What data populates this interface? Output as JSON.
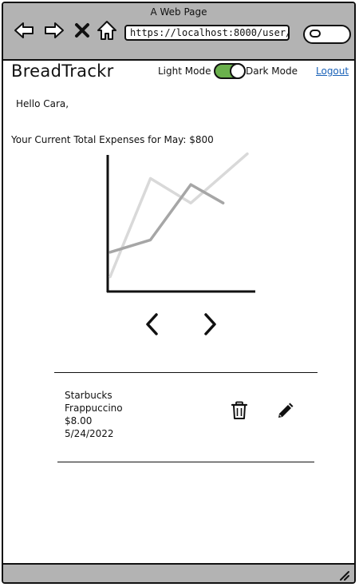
{
  "browser": {
    "window_title": "A Web Page",
    "url": "https://localhost:8000/user/:id"
  },
  "header": {
    "brand": "BreadTrackr",
    "light_mode_label": "Light Mode",
    "dark_mode_label": "Dark Mode",
    "logout_label": "Logout",
    "toggle_state": "dark",
    "toggle_color": "#6ab04c"
  },
  "main": {
    "greeting": "Hello Cara,",
    "expenses_summary": "Your Current Total Expenses for May: $800"
  },
  "chart_data": {
    "type": "line",
    "title": "",
    "xlabel": "",
    "ylabel": "",
    "x": [
      0,
      1,
      2,
      3,
      4
    ],
    "series": [
      {
        "values": [
          1,
          9,
          7,
          11
        ],
        "x": [
          0,
          1,
          2,
          3.4
        ],
        "color": "#d9d9d9"
      },
      {
        "values": [
          3,
          4,
          8.5,
          7
        ],
        "x": [
          0,
          1,
          2,
          2.8
        ],
        "color": "#a6a6a6"
      }
    ],
    "xlim": [
      0,
      3.4
    ],
    "ylim": [
      0,
      10
    ],
    "grid": false
  },
  "pager": {
    "prev_icon": "chevron-left-icon",
    "next_icon": "chevron-right-icon"
  },
  "expense_entry": {
    "merchant": "Starbucks",
    "item": "Frappuccino",
    "amount": "$8.00",
    "date": "5/24/2022",
    "delete_icon": "trash-icon",
    "edit_icon": "pencil-icon"
  }
}
